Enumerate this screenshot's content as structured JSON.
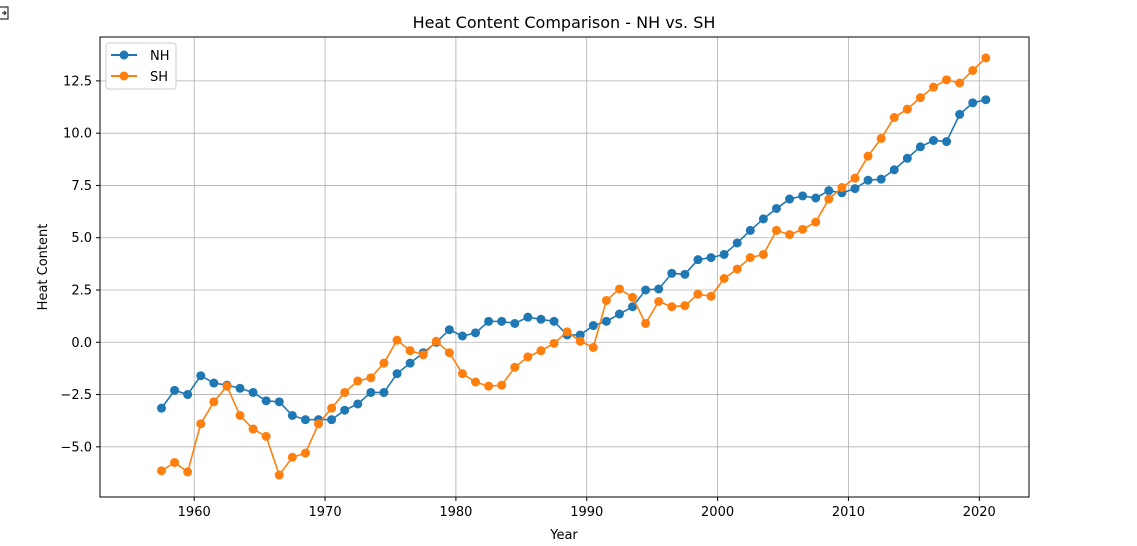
{
  "colors": {
    "NH": "#1f77b4",
    "SH": "#ff7f0e",
    "grid": "#b0b0b0"
  },
  "icons": {
    "corner": "expand-icon"
  },
  "chart_data": {
    "type": "line",
    "title": "Heat Content Comparison - NH vs. SH",
    "xlabel": "Year",
    "ylabel": "Heat Content",
    "xlim": [
      1952.8,
      2023.8
    ],
    "ylim": [
      -7.4,
      14.6
    ],
    "xticks": [
      1960,
      1970,
      1980,
      1990,
      2000,
      2010,
      2020
    ],
    "yticks": [
      -5.0,
      -2.5,
      0.0,
      2.5,
      5.0,
      7.5,
      10.0,
      12.5
    ],
    "ytick_labels": [
      "−5.0",
      "−2.5",
      "0.0",
      "2.5",
      "5.0",
      "7.5",
      "10.0",
      "12.5"
    ],
    "grid": true,
    "legend_position": "upper-left",
    "x": [
      1957.5,
      1958.5,
      1959.5,
      1960.5,
      1961.5,
      1962.5,
      1963.5,
      1964.5,
      1965.5,
      1966.5,
      1967.5,
      1968.5,
      1969.5,
      1970.5,
      1971.5,
      1972.5,
      1973.5,
      1974.5,
      1975.5,
      1976.5,
      1977.5,
      1978.5,
      1979.5,
      1980.5,
      1981.5,
      1982.5,
      1983.5,
      1984.5,
      1985.5,
      1986.5,
      1987.5,
      1988.5,
      1989.5,
      1990.5,
      1991.5,
      1992.5,
      1993.5,
      1994.5,
      1995.5,
      1996.5,
      1997.5,
      1998.5,
      1999.5,
      2000.5,
      2001.5,
      2002.5,
      2003.5,
      2004.5,
      2005.5,
      2006.5,
      2007.5,
      2008.5,
      2009.5,
      2010.5,
      2011.5,
      2012.5,
      2013.5,
      2014.5,
      2015.5,
      2016.5,
      2017.5,
      2018.5,
      2019.5,
      2020.5
    ],
    "series": [
      {
        "name": "NH",
        "values": [
          -3.15,
          -2.3,
          -2.5,
          -1.6,
          -1.95,
          -2.05,
          -2.2,
          -2.4,
          -2.8,
          -2.85,
          -3.5,
          -3.7,
          -3.7,
          -3.7,
          -3.25,
          -2.95,
          -2.4,
          -2.4,
          -1.5,
          -1.0,
          -0.5,
          0.0,
          0.6,
          0.3,
          0.45,
          1.0,
          1.0,
          0.9,
          1.2,
          1.1,
          1.0,
          0.35,
          0.35,
          0.8,
          1.0,
          1.35,
          1.7,
          2.5,
          2.55,
          3.3,
          3.25,
          3.95,
          4.05,
          4.2,
          4.75,
          5.35,
          5.9,
          6.4,
          6.85,
          7.0,
          6.9,
          7.25,
          7.15,
          7.35,
          7.75,
          7.8,
          8.25,
          8.8,
          9.35,
          9.65,
          9.6,
          10.9,
          11.45,
          11.6
        ]
      },
      {
        "name": "SH",
        "values": [
          -6.15,
          -5.75,
          -6.2,
          -3.9,
          -2.85,
          -2.1,
          -3.5,
          -4.15,
          -4.5,
          -6.35,
          -5.5,
          -5.3,
          -3.9,
          -3.15,
          -2.4,
          -1.85,
          -1.7,
          -1.0,
          0.1,
          -0.4,
          -0.6,
          0.05,
          -0.5,
          -1.5,
          -1.9,
          -2.1,
          -2.05,
          -1.2,
          -0.7,
          -0.4,
          -0.05,
          0.5,
          0.05,
          -0.25,
          2.0,
          2.55,
          2.15,
          0.9,
          1.95,
          1.7,
          1.75,
          2.3,
          2.2,
          3.05,
          3.5,
          4.05,
          4.2,
          5.35,
          5.15,
          5.4,
          5.75,
          6.85,
          7.4,
          7.85,
          8.9,
          9.75,
          10.75,
          11.15,
          11.7,
          12.2,
          12.55,
          12.4,
          13.0,
          13.6
        ]
      }
    ]
  }
}
